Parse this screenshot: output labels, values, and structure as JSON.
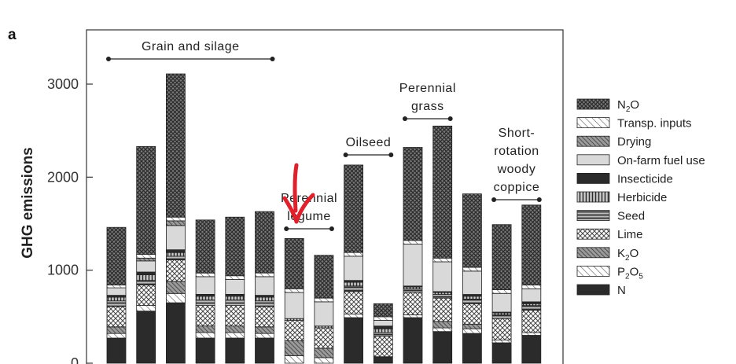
{
  "panel_label": "a",
  "chart_data": {
    "type": "bar",
    "stacked": true,
    "ylabel": "GHG emissions",
    "xlabel": "",
    "ylim": [
      0,
      3450
    ],
    "yticks": [
      0,
      1000,
      2000,
      3000
    ],
    "ytick_labels": [
      "0",
      "1000",
      "2000",
      "3000"
    ],
    "categories": [
      "",
      "",
      "",
      "",
      "",
      "",
      "",
      "",
      "",
      "",
      "",
      "",
      "",
      "",
      ""
    ],
    "series": [
      {
        "name": "N",
        "key": "n",
        "color": "#2b2b2b",
        "pattern": "solid-dark",
        "values": [
          270,
          560,
          650,
          270,
          270,
          270,
          0,
          0,
          490,
          70,
          490,
          340,
          320,
          220,
          300
        ]
      },
      {
        "name": "P₂O₅",
        "key": "p2o5",
        "color": "#ffffff",
        "pattern": "diag-light",
        "values": [
          50,
          60,
          100,
          60,
          60,
          50,
          80,
          60,
          40,
          0,
          30,
          40,
          50,
          30,
          30
        ]
      },
      {
        "name": "K₂O",
        "key": "k2o",
        "color": "#8a8a8a",
        "pattern": "diag-dense",
        "values": [
          70,
          0,
          130,
          70,
          70,
          70,
          160,
          100,
          0,
          0,
          0,
          70,
          50,
          0,
          0
        ]
      },
      {
        "name": "Lime",
        "key": "lime",
        "color": "#ffffff",
        "pattern": "crosshatch",
        "values": [
          220,
          220,
          230,
          220,
          220,
          220,
          220,
          220,
          240,
          220,
          240,
          250,
          220,
          230,
          240
        ]
      },
      {
        "name": "Seed",
        "key": "seed",
        "color": "#555555",
        "pattern": "hstripes",
        "values": [
          60,
          50,
          40,
          60,
          60,
          60,
          0,
          0,
          60,
          40,
          40,
          40,
          50,
          40,
          50
        ]
      },
      {
        "name": "Herbicide",
        "key": "herbicide",
        "color": "#777777",
        "pattern": "vstripes",
        "values": [
          40,
          60,
          40,
          40,
          40,
          40,
          20,
          20,
          40,
          40,
          20,
          20,
          30,
          20,
          20
        ]
      },
      {
        "name": "Insecticide",
        "key": "insecticide",
        "color": "#2b2b2b",
        "pattern": "solid-dark",
        "values": [
          20,
          30,
          30,
          20,
          20,
          20,
          0,
          0,
          20,
          30,
          10,
          10,
          20,
          10,
          20
        ]
      },
      {
        "name": "On-farm fuel use",
        "key": "fuel",
        "color": "#d7d7d7",
        "pattern": "solid-light",
        "values": [
          80,
          120,
          260,
          190,
          160,
          200,
          280,
          260,
          260,
          60,
          450,
          320,
          250,
          200,
          140
        ]
      },
      {
        "name": "Drying",
        "key": "drying",
        "color": "#8a8a8a",
        "pattern": "diag-dense",
        "values": [
          0,
          30,
          50,
          0,
          0,
          0,
          0,
          0,
          0,
          0,
          0,
          0,
          0,
          0,
          0
        ]
      },
      {
        "name": "Transp. inputs",
        "key": "transp",
        "color": "#ffffff",
        "pattern": "diag-light",
        "values": [
          30,
          40,
          40,
          40,
          40,
          40,
          40,
          40,
          40,
          40,
          40,
          40,
          40,
          40,
          40
        ]
      },
      {
        "name": "N₂O",
        "key": "n2o",
        "color": "#6f6f6f",
        "pattern": "n2o",
        "values": [
          620,
          1160,
          1540,
          570,
          630,
          660,
          540,
          460,
          940,
          140,
          1000,
          1420,
          790,
          700,
          860
        ]
      }
    ],
    "groups": [
      {
        "label_lines": [
          "Grain and silage"
        ],
        "from": 0,
        "to": 5
      },
      {
        "label_lines": [
          "Perennial",
          "legume"
        ],
        "from": 6,
        "to": 7
      },
      {
        "label_lines": [
          "Oilseed"
        ],
        "from": 8,
        "to": 9
      },
      {
        "label_lines": [
          "Perennial",
          "grass"
        ],
        "from": 10,
        "to": 11
      },
      {
        "label_lines": [
          "Short-",
          "rotation",
          "woody",
          "coppice"
        ],
        "from": 13,
        "to": 14
      }
    ],
    "legend": {
      "position": "right",
      "order": [
        "n2o",
        "transp",
        "drying",
        "fuel",
        "insecticide",
        "herbicide",
        "seed",
        "lime",
        "k2o",
        "p2o5",
        "n"
      ],
      "labels": [
        {
          "key": "n2o",
          "text": "N",
          "sub": "2",
          "tail": "O"
        },
        {
          "key": "transp",
          "text": "Transp. inputs",
          "sub": "",
          "tail": ""
        },
        {
          "key": "drying",
          "text": "Drying",
          "sub": "",
          "tail": ""
        },
        {
          "key": "fuel",
          "text": "On-farm fuel use",
          "sub": "",
          "tail": ""
        },
        {
          "key": "insecticide",
          "text": "Insecticide",
          "sub": "",
          "tail": ""
        },
        {
          "key": "herbicide",
          "text": "Herbicide",
          "sub": "",
          "tail": ""
        },
        {
          "key": "seed",
          "text": "Seed",
          "sub": "",
          "tail": ""
        },
        {
          "key": "lime",
          "text": "Lime",
          "sub": "",
          "tail": ""
        },
        {
          "key": "k2o",
          "text": "K",
          "sub": "2",
          "tail": "O"
        },
        {
          "key": "p2o5",
          "text": "P",
          "sub": "2",
          "tail": "O",
          "sub2": "5"
        },
        {
          "key": "n",
          "text": "N",
          "sub": "",
          "tail": ""
        }
      ]
    },
    "grid": false,
    "annotation": {
      "type": "hand-drawn-arrow",
      "color": "#e0202a",
      "points_to_bar": 6
    }
  }
}
